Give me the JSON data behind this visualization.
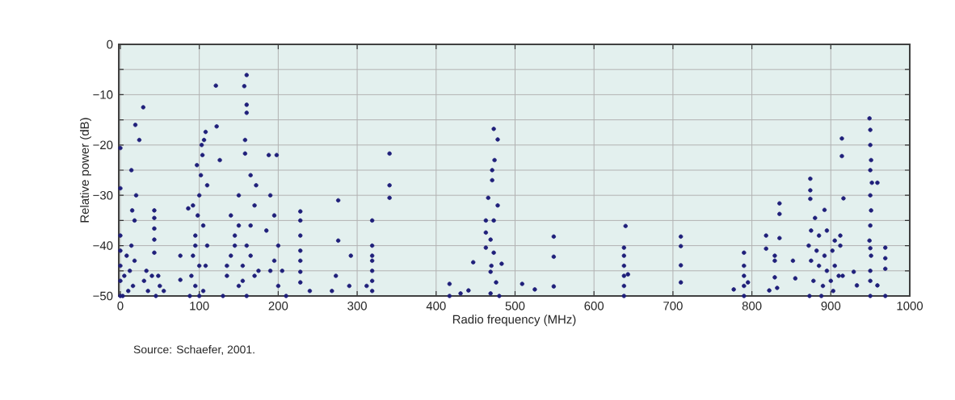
{
  "chart_data": {
    "type": "scatter",
    "xlabel": "Radio frequency (MHz)",
    "ylabel": "Relative power (dB)",
    "annotations": [
      "Source: Schaefer, 2001."
    ],
    "xlim": [
      -2,
      1000
    ],
    "ylim": [
      -50,
      0
    ],
    "xticks": [
      0,
      100,
      200,
      300,
      400,
      500,
      600,
      700,
      800,
      900,
      1000
    ],
    "yticks": [
      {
        "value": -50,
        "label": "−50"
      },
      {
        "value": -45,
        "label": null
      },
      {
        "value": -40,
        "label": "−40"
      },
      {
        "value": -35,
        "label": null
      },
      {
        "value": -30,
        "label": "−30"
      },
      {
        "value": -25,
        "label": null
      },
      {
        "value": -20,
        "label": "−20"
      },
      {
        "value": -15,
        "label": null
      },
      {
        "value": -10,
        "label": "−10"
      },
      {
        "value": -5,
        "label": null
      },
      {
        "value": 0,
        "label": "0"
      }
    ],
    "grid": true,
    "marker": "circle",
    "series": [
      {
        "color": "#1f1f7a",
        "x": [
          0,
          0,
          0,
          0,
          0,
          3,
          5,
          8,
          10,
          12,
          14,
          16,
          18,
          0,
          0,
          19,
          24,
          29,
          14,
          20,
          18,
          15,
          43,
          43,
          43,
          43,
          43,
          30,
          35,
          40,
          45,
          50,
          55,
          33,
          48,
          88,
          90,
          92,
          95,
          98,
          100,
          102,
          104,
          106,
          108,
          110,
          95,
          100,
          105,
          110,
          92,
          97,
          103,
          108,
          100,
          95,
          105,
          86,
          76,
          76,
          121,
          122,
          126,
          130,
          135,
          140,
          145,
          150,
          155,
          160,
          165,
          170,
          172,
          140,
          150,
          160,
          170,
          135,
          145,
          155,
          165,
          160,
          157,
          160,
          160,
          158,
          158,
          150,
          165,
          175,
          188,
          198,
          190,
          195,
          200,
          205,
          190,
          200,
          210,
          195,
          185,
          228,
          228,
          228,
          228,
          228,
          228,
          228,
          276,
          276,
          292,
          273,
          268,
          240,
          290,
          319,
          319,
          319,
          319,
          319,
          319,
          319,
          312,
          341,
          341,
          341,
          473,
          478,
          474,
          471,
          471,
          466,
          478,
          463,
          473,
          463,
          469,
          463,
          473,
          483,
          469,
          476,
          469,
          447,
          441,
          417,
          417,
          431,
          470,
          480,
          509,
          525,
          549,
          549,
          549,
          640,
          638,
          638,
          638,
          638,
          638,
          638,
          643,
          710,
          710,
          710,
          710,
          790,
          790,
          790,
          790,
          790,
          795,
          777,
          818,
          835,
          835,
          835,
          818,
          829,
          829,
          852,
          829,
          855,
          822,
          832,
          874,
          874,
          874,
          892,
          880,
          875,
          885,
          895,
          905,
          912,
          872,
          882,
          892,
          902,
          912,
          875,
          885,
          895,
          905,
          915,
          878,
          890,
          900,
          910,
          873,
          888,
          903,
          914,
          914,
          916,
          949,
          950,
          950,
          951,
          950,
          952,
          950,
          951,
          950,
          949,
          950,
          951,
          950,
          950,
          950,
          959,
          969,
          969,
          969,
          969,
          933,
          929,
          959
        ],
        "values": [
          -50,
          -47,
          -44,
          -41,
          -38,
          -50,
          -46,
          -42,
          -49,
          -45,
          -40,
          -48,
          -43,
          -20.6,
          -28.6,
          -16,
          -19,
          -12.5,
          -25,
          -30,
          -35,
          -33,
          -33,
          -34.5,
          -36.6,
          -38.8,
          -41.4,
          -47,
          -49,
          -46,
          -50,
          -48,
          -49,
          -45,
          -46,
          -50,
          -46,
          -42,
          -38,
          -34,
          -30,
          -26,
          -22,
          -19,
          -17.4,
          -40,
          -48,
          -44,
          -36,
          -28,
          -32,
          -24,
          -20,
          -44,
          -50,
          -40,
          -49,
          -32.6,
          -42,
          -46.8,
          -8.2,
          -16.3,
          -23,
          -50,
          -46,
          -42,
          -38,
          -48,
          -44,
          -40,
          -36,
          -32,
          -28,
          -34,
          -30,
          -50,
          -46,
          -44,
          -40,
          -47,
          -42,
          -6.1,
          -8.3,
          -12,
          -13.6,
          -19,
          -21.7,
          -36,
          -26,
          -45,
          -22,
          -22,
          -30,
          -34,
          -40,
          -45,
          -45,
          -48,
          -50,
          -43,
          -37,
          -33.2,
          -35,
          -38,
          -41,
          -43,
          -45.2,
          -47.3,
          -31,
          -39,
          -42,
          -46,
          -49,
          -49,
          -48,
          -35,
          -40,
          -42,
          -43,
          -45,
          -47,
          -49,
          -48,
          -21.7,
          -28,
          -30.5,
          -16.8,
          -18.9,
          -23,
          -25,
          -27,
          -30.5,
          -32,
          -35,
          -35,
          -37.4,
          -38.8,
          -40.4,
          -41.4,
          -43.6,
          -45.2,
          -47.3,
          -49.5,
          -43.3,
          -48.9,
          -50,
          -47.6,
          -49.5,
          -44,
          -50,
          -47.6,
          -48.7,
          -38.2,
          -42.2,
          -48.1,
          -36.1,
          -40.4,
          -42,
          -44,
          -46,
          -48,
          -50,
          -45.7,
          -38.2,
          -40.1,
          -43.9,
          -47.3,
          -41.4,
          -44,
          -46,
          -48,
          -50,
          -47.3,
          -48.7,
          -38,
          -31.6,
          -33.7,
          -38.5,
          -40.6,
          -42,
          -43,
          -43,
          -46.3,
          -46.5,
          -48.9,
          -48.4,
          -26.7,
          -29,
          -30.7,
          -32.9,
          -34.5,
          -37,
          -38,
          -37,
          -39,
          -38,
          -40,
          -41,
          -42,
          -41,
          -40,
          -43,
          -44,
          -45,
          -44,
          -46,
          -47,
          -48,
          -47,
          -46,
          -50,
          -50,
          -49,
          -18.7,
          -22.2,
          -30.6,
          -14.7,
          -17,
          -20,
          -23,
          -25,
          -27.5,
          -30,
          -33,
          -36,
          -39,
          -40.5,
          -42,
          -45,
          -47,
          -50,
          -27.5,
          -40.4,
          -42.5,
          -44.6,
          -50,
          -47.9,
          -45.2,
          -47.9
        ]
      }
    ]
  }
}
